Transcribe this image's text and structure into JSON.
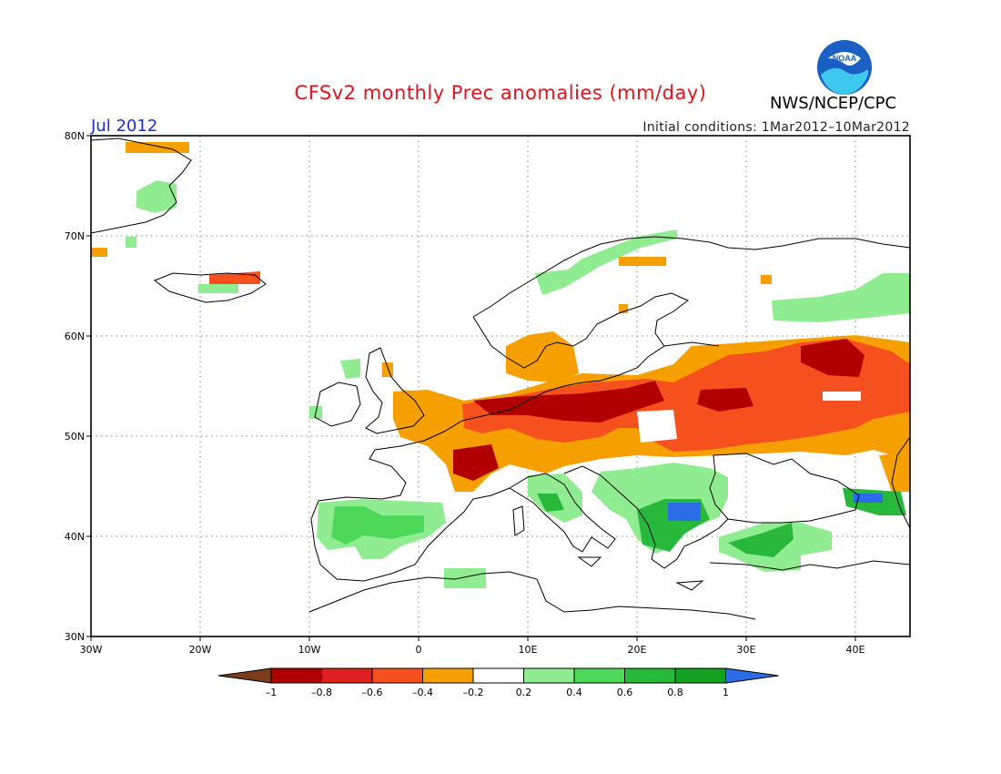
{
  "header": {
    "title": "CFSv2 monthly Prec anomalies (mm/day)",
    "organization": "NWS/NCEP/CPC",
    "month": "Jul 2012",
    "initial_conditions": "Initial conditions: 1Mar2012–10Mar2012",
    "logo_text": "NOAA"
  },
  "map": {
    "extent": {
      "lon": [
        -30,
        45
      ],
      "lat": [
        30,
        80
      ]
    },
    "lon_tick_labels": [
      "30W",
      "20W",
      "10W",
      "0",
      "10E",
      "20E",
      "30E",
      "40E"
    ],
    "lat_tick_labels": [
      "30N",
      "40N",
      "50N",
      "60N",
      "70N",
      "80N"
    ],
    "gridlines": "dotted"
  },
  "colorbar": {
    "tick_labels": [
      "–1",
      "–0.8",
      "–0.6",
      "–0.4",
      "–0.2",
      "0.2",
      "0.4",
      "0.6",
      "0.8",
      "1"
    ],
    "colors": [
      "#7b3c1c",
      "#b00000",
      "#de2020",
      "#f5501e",
      "#f5a000",
      "#ffffff",
      "#90ec90",
      "#4ed85a",
      "#28b83c",
      "#12a020",
      "#2c6ce6"
    ]
  },
  "colors": {
    "title": "#e0141c",
    "month_label": "#1f2be0",
    "coastline": "#000000"
  }
}
